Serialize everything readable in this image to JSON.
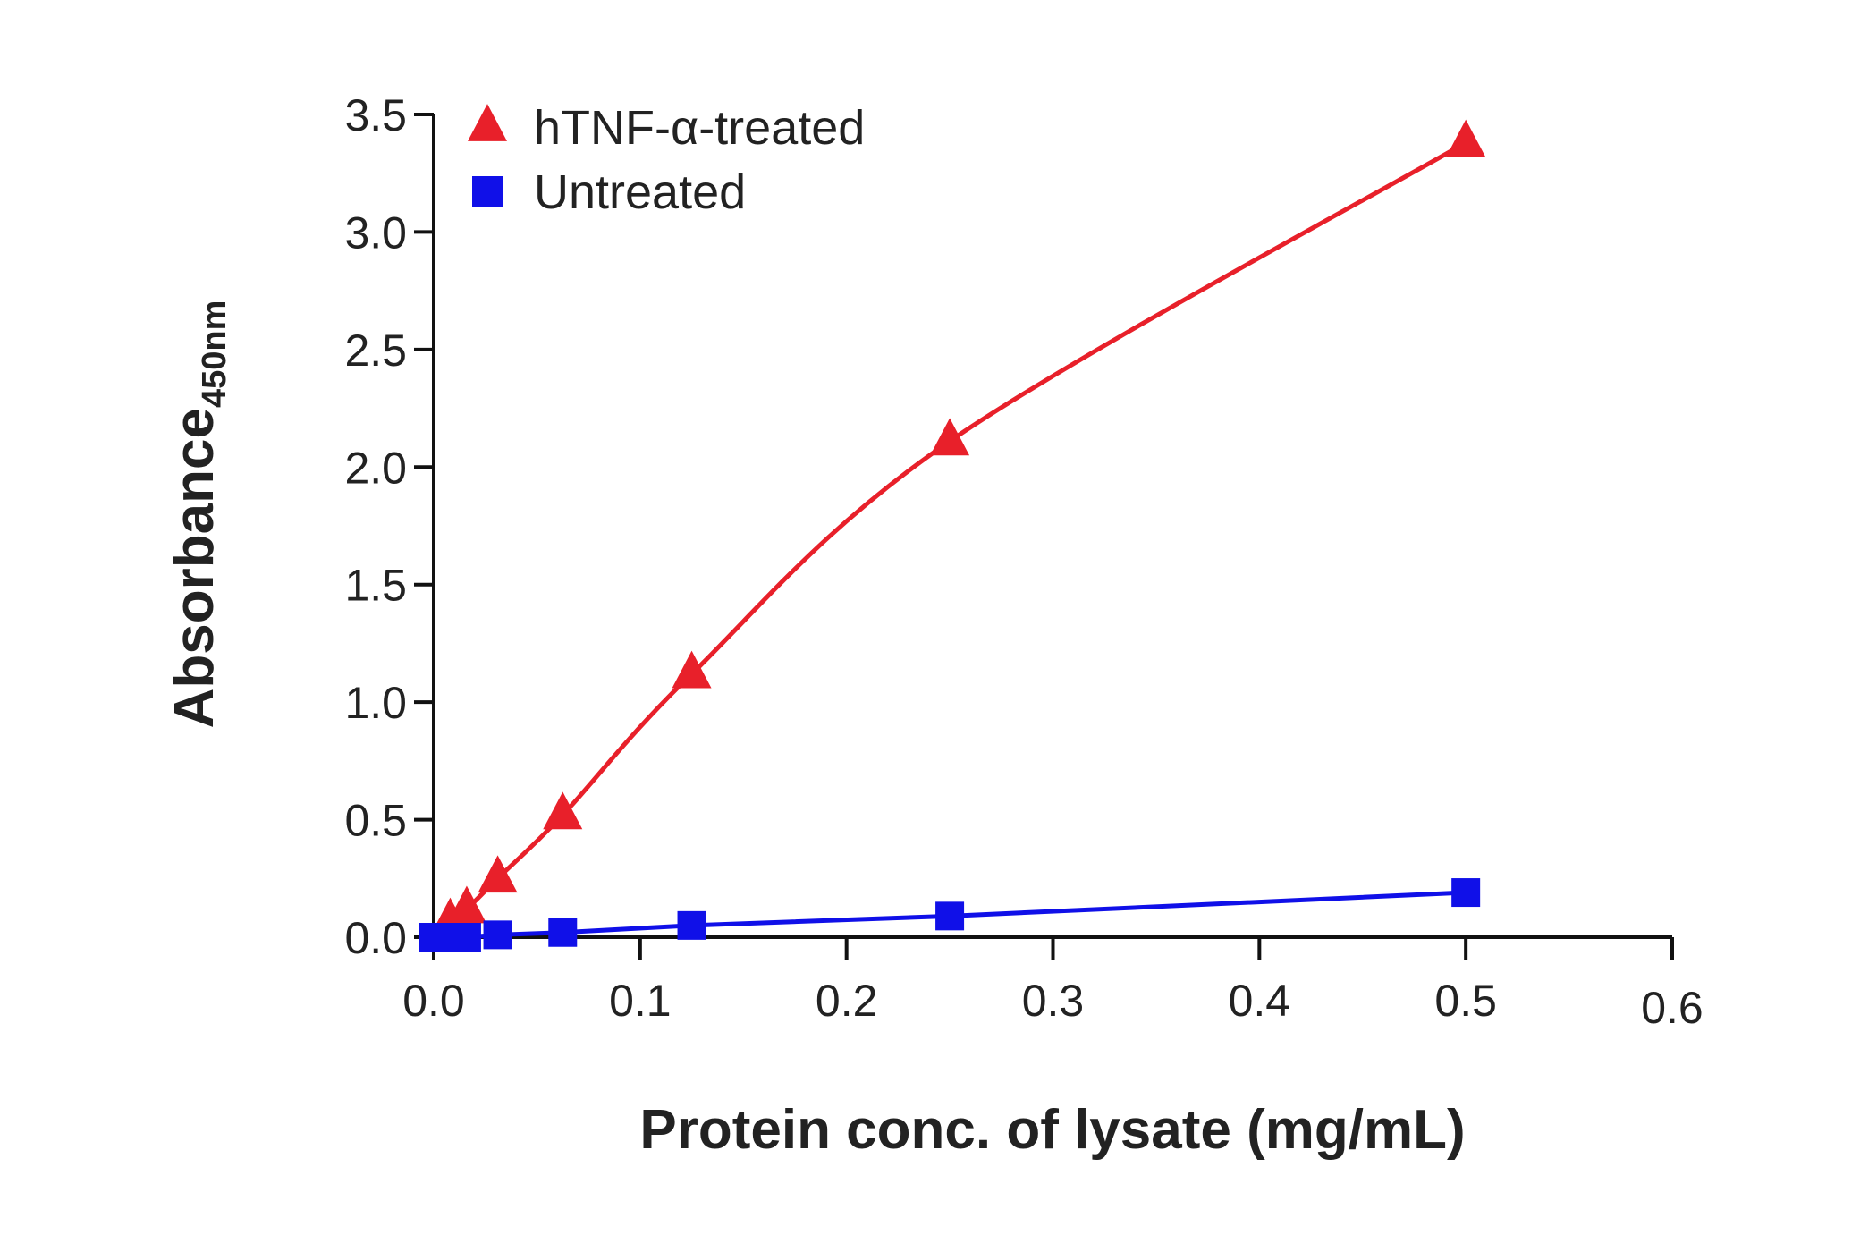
{
  "chart_data": {
    "type": "line",
    "title": "",
    "xlabel": "Protein conc. of lysate (mg/mL)",
    "ylabel_main": "Absorbance",
    "ylabel_sub": "450nm",
    "xlim": [
      0,
      0.6
    ],
    "ylim": [
      0,
      3.5
    ],
    "xticks": [
      "0.0",
      "0.1",
      "0.2",
      "0.3",
      "0.4",
      "0.5",
      "0.6"
    ],
    "yticks": [
      "0.0",
      "0.5",
      "1.0",
      "1.5",
      "2.0",
      "2.5",
      "3.0",
      "3.5"
    ],
    "grid": false,
    "legend_position": "top-left",
    "series": [
      {
        "name": "hTNF-α-treated",
        "marker": "triangle",
        "color": "#e8202a",
        "x": [
          0.008,
          0.016,
          0.031,
          0.0625,
          0.125,
          0.25,
          0.5
        ],
        "y": [
          0.07,
          0.12,
          0.25,
          0.52,
          1.12,
          2.11,
          3.38
        ]
      },
      {
        "name": "Untreated",
        "marker": "square",
        "color": "#1010e8",
        "x": [
          0.0,
          0.008,
          0.016,
          0.031,
          0.0625,
          0.125,
          0.25,
          0.5
        ],
        "y": [
          0.0,
          0.0,
          0.0,
          0.01,
          0.02,
          0.05,
          0.09,
          0.19
        ]
      }
    ]
  }
}
